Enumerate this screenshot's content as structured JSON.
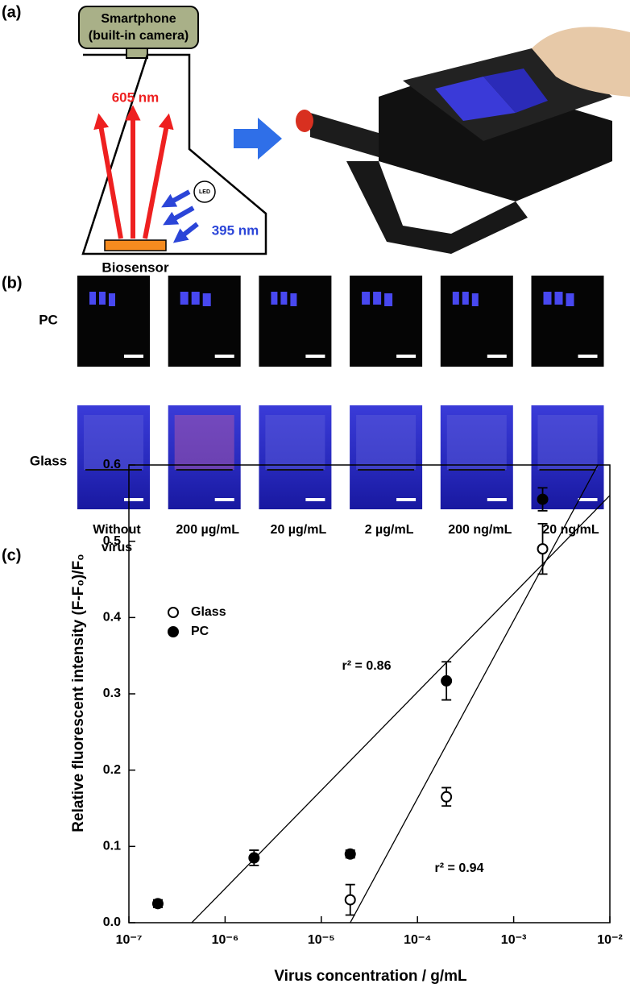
{
  "panel_a": {
    "label": "(a)",
    "phone": "Smartphone",
    "camera": "(built-in camera)",
    "emission": "605 nm",
    "led": "LED",
    "excitation": "395 nm",
    "sensor": "Biosensor"
  },
  "panel_b": {
    "label": "(b)",
    "rows": [
      "PC",
      "Glass"
    ],
    "columns": [
      "Without virus",
      "200 µg/mL",
      "20 µg/mL",
      "2 µg/mL",
      "200 ng/mL",
      "20 ng/mL"
    ]
  },
  "panel_c": {
    "label": "(c)"
  },
  "chart_data": {
    "type": "scatter",
    "xlabel": "Virus concentration / g/mL",
    "ylabel": "Relative fluorescent intensity (F-F₀)/F₀",
    "xscale": "log",
    "xlim": [
      1e-07,
      0.01
    ],
    "xticks": [
      {
        "value": 1e-07,
        "label": "10⁻⁷"
      },
      {
        "value": 1e-06,
        "label": "10⁻⁶"
      },
      {
        "value": 1e-05,
        "label": "10⁻⁵"
      },
      {
        "value": 0.0001,
        "label": "10⁻⁴"
      },
      {
        "value": 0.001,
        "label": "10⁻³"
      },
      {
        "value": 0.01,
        "label": "10⁻²"
      }
    ],
    "ylim": [
      0,
      0.6
    ],
    "yticks": [
      {
        "value": 0,
        "label": "0.0"
      },
      0.1,
      0.2,
      0.3,
      0.4,
      0.5,
      0.6
    ],
    "legend": "upper left",
    "series": [
      {
        "name": "Glass",
        "color": "#000000",
        "filled": false,
        "x": [
          2e-05,
          0.0002,
          0.002
        ],
        "values": [
          0.03,
          0.165,
          0.49
        ],
        "errors": [
          0.02,
          0.012,
          0.033
        ]
      },
      {
        "name": "PC",
        "color": "#000000",
        "filled": true,
        "x": [
          2e-07,
          2e-06,
          2e-05,
          0.0002,
          0.002
        ],
        "values": [
          0.025,
          0.085,
          0.09,
          0.317,
          0.555
        ],
        "errors": [
          0.005,
          0.01,
          0.005,
          0.025,
          0.015
        ]
      }
    ],
    "fits": [
      {
        "x": [
          4.5e-07,
          0.01
        ],
        "values": [
          0,
          0.56
        ]
      },
      {
        "x": [
          2e-05,
          0.0075
        ],
        "values": [
          0,
          0.6
        ]
      }
    ],
    "annotations": [
      "r² = 0.86",
      "r² = 0.94"
    ]
  }
}
